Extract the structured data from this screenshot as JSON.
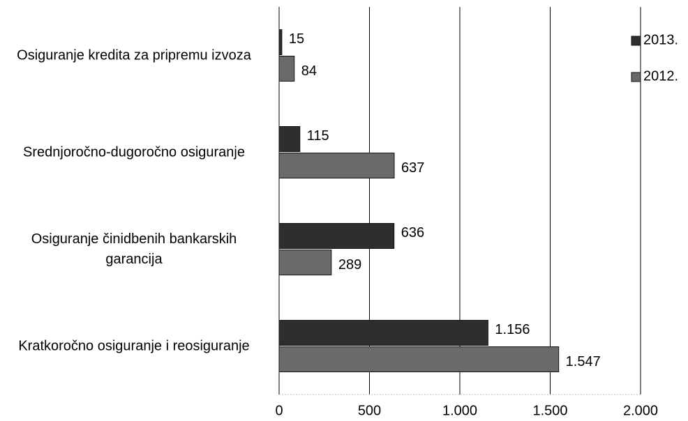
{
  "chart_data": {
    "type": "barh",
    "categories": [
      "Osiguranje kredita za pripremu izvoza",
      "Srednjoročno-dugoročno osiguranje",
      "Osiguranje činidbenih bankarskih garancija",
      "Kratkoročno osiguranje i reosiguranje"
    ],
    "series": [
      {
        "name": "2013.",
        "color": "#2e2e2e",
        "values": [
          15,
          115,
          636,
          1156
        ],
        "value_labels": [
          "15",
          "115",
          "636",
          "1.156"
        ]
      },
      {
        "name": "2012.",
        "color": "#6a6a6a",
        "values": [
          84,
          637,
          289,
          1547
        ],
        "value_labels": [
          "84",
          "637",
          "289",
          "1.547"
        ]
      }
    ],
    "xlim": [
      0,
      2000
    ],
    "xticks": [
      0,
      500,
      {
        "value": 1000,
        "label": "1.000"
      },
      {
        "value": 1500,
        "label": "1.500"
      },
      {
        "value": 2000,
        "label": "2.000"
      }
    ],
    "grid": true,
    "legend": "top-right"
  }
}
